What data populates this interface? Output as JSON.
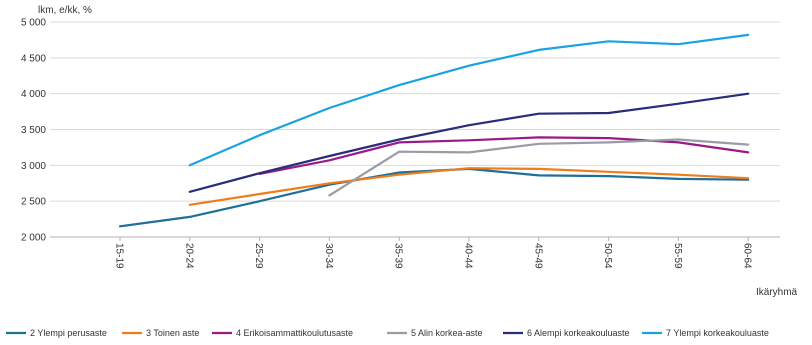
{
  "chart_data": {
    "type": "line",
    "title": "",
    "ylabel": "lkm, e/kk, %",
    "xlabel": "Ikäryhmä",
    "categories": [
      "15-19",
      "20-24",
      "25-29",
      "30-34",
      "35-39",
      "40-44",
      "45-49",
      "50-54",
      "55-59",
      "60-64"
    ],
    "ylim": [
      2000,
      5000
    ],
    "yticks": [
      2000,
      2500,
      3000,
      3500,
      4000,
      4500,
      5000
    ],
    "ytick_labels": [
      "2 000",
      "2 500",
      "3 000",
      "3 500",
      "4 000",
      "4 500",
      "5 000"
    ],
    "grid": "y",
    "legend": "bottom",
    "series": [
      {
        "name": "2 Ylempi perusaste",
        "color": "#1f6f9a",
        "values": [
          2150,
          2280,
          2500,
          2730,
          2900,
          2950,
          2860,
          2850,
          2810,
          2800
        ]
      },
      {
        "name": "3 Toinen aste",
        "color": "#f07c1a",
        "values": [
          null,
          2450,
          2600,
          2750,
          2870,
          2960,
          2950,
          2910,
          2870,
          2820
        ]
      },
      {
        "name": "4 Erikoisammattikoulutusaste",
        "color": "#9a1a8a",
        "values": [
          null,
          null,
          2880,
          3070,
          3320,
          3350,
          3390,
          3380,
          3320,
          3180
        ]
      },
      {
        "name": "5 Alin korkea-aste",
        "color": "#9b9ba6",
        "values": [
          null,
          null,
          null,
          2580,
          3190,
          3180,
          3300,
          3320,
          3360,
          3290
        ]
      },
      {
        "name": "6 Alempi korkeakouluaste",
        "color": "#2a2d7a",
        "values": [
          null,
          2630,
          2890,
          3130,
          3360,
          3560,
          3720,
          3730,
          3860,
          4000
        ]
      },
      {
        "name": "7 Ylempi korkeakouluaste",
        "color": "#1aa3e0",
        "values": [
          null,
          3000,
          3420,
          3800,
          4120,
          4390,
          4610,
          4730,
          4690,
          4820
        ]
      }
    ]
  }
}
